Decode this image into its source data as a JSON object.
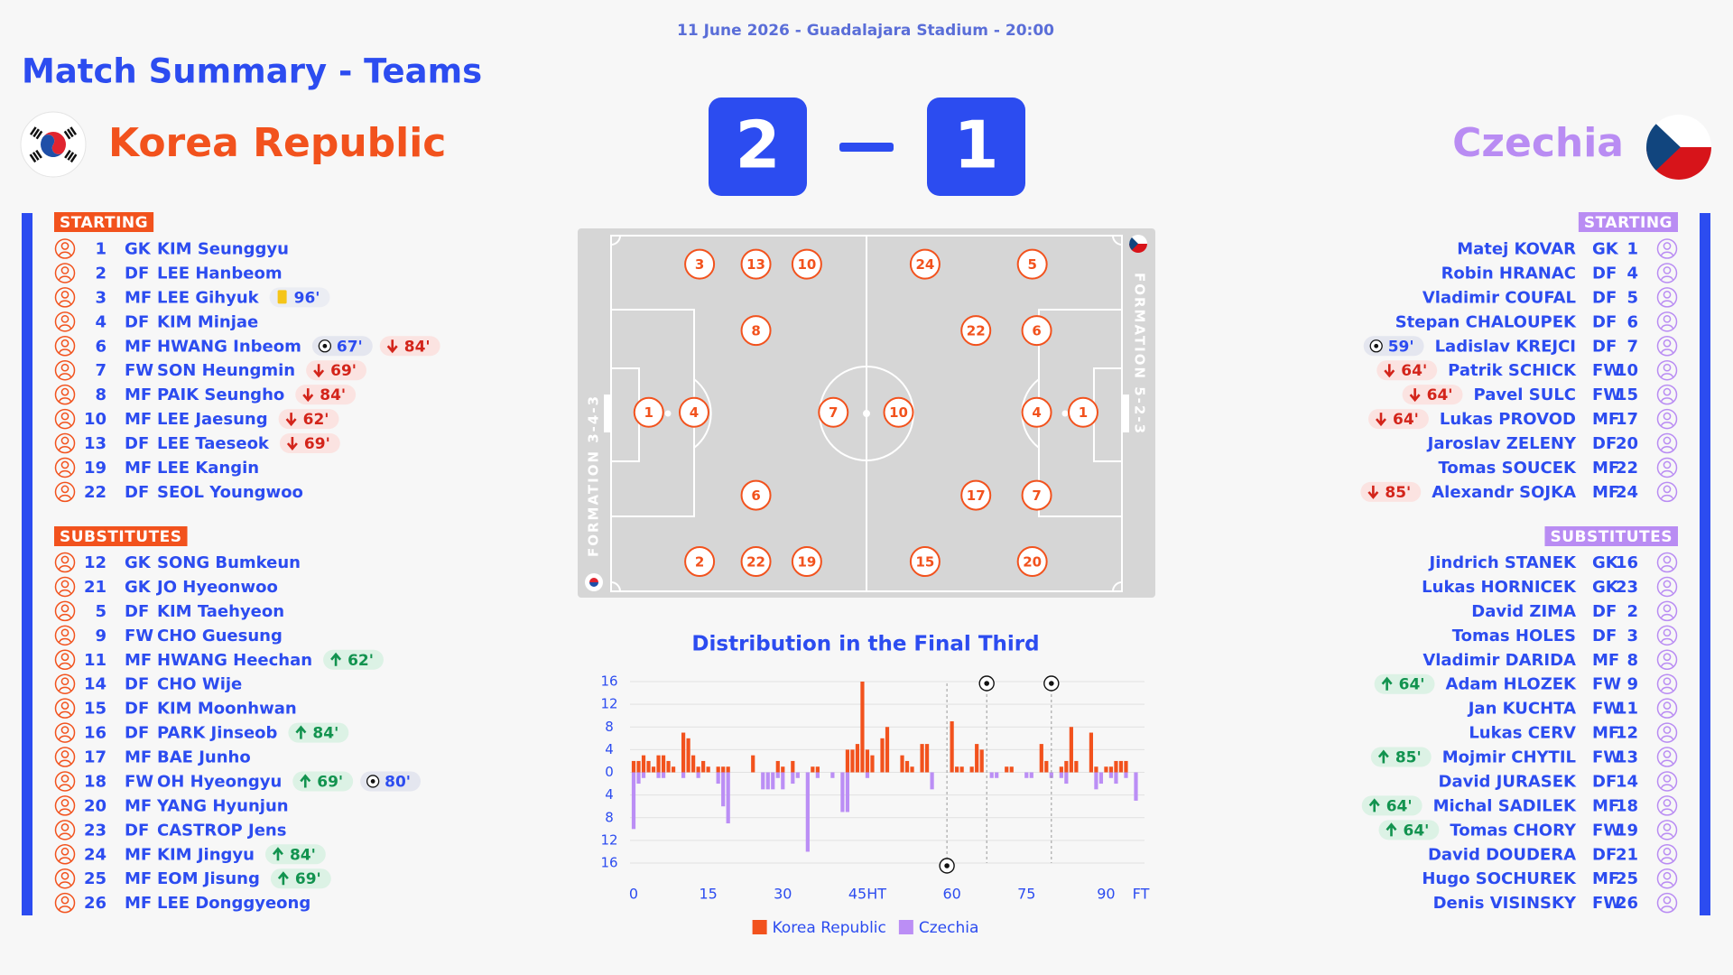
{
  "header": {
    "info": "11 June 2026 - Guadalajara Stadium - 20:00",
    "title": "Match Summary - Teams"
  },
  "score": {
    "home": 2,
    "away": 1
  },
  "teams": {
    "home": {
      "name": "Korea Republic",
      "color": "#f2521d",
      "formation": "FORMATION 3-4-3",
      "starting_label": "STARTING",
      "subs_label": "SUBSTITUTES",
      "starting": [
        {
          "number": 1,
          "position": "GK",
          "name": "KIM Seunggyu"
        },
        {
          "number": 2,
          "position": "DF",
          "name": "LEE Hanbeom"
        },
        {
          "number": 3,
          "position": "MF",
          "name": "LEE Gihyuk",
          "events": [
            {
              "type": "yellow",
              "minute": "96'"
            }
          ]
        },
        {
          "number": 4,
          "position": "DF",
          "name": "KIM Minjae"
        },
        {
          "number": 6,
          "position": "MF",
          "name": "HWANG Inbeom",
          "events": [
            {
              "type": "goal",
              "minute": "67'"
            },
            {
              "type": "off",
              "minute": "84'"
            }
          ]
        },
        {
          "number": 7,
          "position": "FW",
          "name": "SON Heungmin",
          "events": [
            {
              "type": "off",
              "minute": "69'"
            }
          ]
        },
        {
          "number": 8,
          "position": "MF",
          "name": "PAIK Seungho",
          "events": [
            {
              "type": "off",
              "minute": "84'"
            }
          ]
        },
        {
          "number": 10,
          "position": "MF",
          "name": "LEE Jaesung",
          "events": [
            {
              "type": "off",
              "minute": "62'"
            }
          ]
        },
        {
          "number": 13,
          "position": "DF",
          "name": "LEE Taeseok",
          "events": [
            {
              "type": "off",
              "minute": "69'"
            }
          ]
        },
        {
          "number": 19,
          "position": "MF",
          "name": "LEE Kangin"
        },
        {
          "number": 22,
          "position": "DF",
          "name": "SEOL Youngwoo"
        }
      ],
      "substitutes": [
        {
          "number": 12,
          "position": "GK",
          "name": "SONG Bumkeun"
        },
        {
          "number": 21,
          "position": "GK",
          "name": "JO Hyeonwoo"
        },
        {
          "number": 5,
          "position": "DF",
          "name": "KIM Taehyeon"
        },
        {
          "number": 9,
          "position": "FW",
          "name": "CHO Guesung"
        },
        {
          "number": 11,
          "position": "MF",
          "name": "HWANG Heechan",
          "events": [
            {
              "type": "on",
              "minute": "62'"
            }
          ]
        },
        {
          "number": 14,
          "position": "DF",
          "name": "CHO Wije"
        },
        {
          "number": 15,
          "position": "DF",
          "name": "KIM Moonhwan"
        },
        {
          "number": 16,
          "position": "DF",
          "name": "PARK Jinseob",
          "events": [
            {
              "type": "on",
              "minute": "84'"
            }
          ]
        },
        {
          "number": 17,
          "position": "MF",
          "name": "BAE Junho"
        },
        {
          "number": 18,
          "position": "FW",
          "name": "OH Hyeongyu",
          "events": [
            {
              "type": "on",
              "minute": "69'"
            },
            {
              "type": "goal",
              "minute": "80'"
            }
          ]
        },
        {
          "number": 20,
          "position": "MF",
          "name": "YANG Hyunjun"
        },
        {
          "number": 23,
          "position": "DF",
          "name": "CASTROP Jens"
        },
        {
          "number": 24,
          "position": "MF",
          "name": "KIM Jingyu",
          "events": [
            {
              "type": "on",
              "minute": "84'"
            }
          ]
        },
        {
          "number": 25,
          "position": "MF",
          "name": "EOM Jisung",
          "events": [
            {
              "type": "on",
              "minute": "69'"
            }
          ]
        },
        {
          "number": 26,
          "position": "MF",
          "name": "LEE Donggyeong"
        }
      ],
      "pitch": [
        3,
        13,
        10,
        8,
        1,
        4,
        7,
        6,
        2,
        22,
        19
      ]
    },
    "away": {
      "name": "Czechia",
      "color": "#b98cf3",
      "formation": "FORMATION 5-2-3",
      "starting_label": "STARTING",
      "subs_label": "SUBSTITUTES",
      "starting": [
        {
          "number": 1,
          "position": "GK",
          "name": "Matej KOVAR"
        },
        {
          "number": 4,
          "position": "DF",
          "name": "Robin HRANAC"
        },
        {
          "number": 5,
          "position": "DF",
          "name": "Vladimir COUFAL"
        },
        {
          "number": 6,
          "position": "DF",
          "name": "Stepan CHALOUPEK"
        },
        {
          "number": 7,
          "position": "DF",
          "name": "Ladislav KREJCI",
          "events": [
            {
              "type": "goal",
              "minute": "59'"
            }
          ]
        },
        {
          "number": 10,
          "position": "FW",
          "name": "Patrik SCHICK",
          "events": [
            {
              "type": "off",
              "minute": "64'"
            }
          ]
        },
        {
          "number": 15,
          "position": "FW",
          "name": "Pavel SULC",
          "events": [
            {
              "type": "off",
              "minute": "64'"
            }
          ]
        },
        {
          "number": 17,
          "position": "MF",
          "name": "Lukas PROVOD",
          "events": [
            {
              "type": "off",
              "minute": "64'"
            }
          ]
        },
        {
          "number": 20,
          "position": "DF",
          "name": "Jaroslav ZELENY"
        },
        {
          "number": 22,
          "position": "MF",
          "name": "Tomas SOUCEK"
        },
        {
          "number": 24,
          "position": "MF",
          "name": "Alexandr SOJKA",
          "events": [
            {
              "type": "off",
              "minute": "85'"
            }
          ]
        }
      ],
      "substitutes": [
        {
          "number": 16,
          "position": "GK",
          "name": "Jindrich STANEK"
        },
        {
          "number": 23,
          "position": "GK",
          "name": "Lukas HORNICEK"
        },
        {
          "number": 2,
          "position": "DF",
          "name": "David ZIMA"
        },
        {
          "number": 3,
          "position": "DF",
          "name": "Tomas HOLES"
        },
        {
          "number": 8,
          "position": "MF",
          "name": "Vladimir DARIDA"
        },
        {
          "number": 9,
          "position": "FW",
          "name": "Adam HLOZEK",
          "events": [
            {
              "type": "on",
              "minute": "64'"
            }
          ]
        },
        {
          "number": 11,
          "position": "FW",
          "name": "Jan KUCHTA"
        },
        {
          "number": 12,
          "position": "MF",
          "name": "Lukas CERV"
        },
        {
          "number": 13,
          "position": "FW",
          "name": "Mojmir CHYTIL",
          "events": [
            {
              "type": "on",
              "minute": "85'"
            }
          ]
        },
        {
          "number": 14,
          "position": "DF",
          "name": "David JURASEK"
        },
        {
          "number": 18,
          "position": "MF",
          "name": "Michal SADILEK",
          "events": [
            {
              "type": "on",
              "minute": "64'"
            }
          ]
        },
        {
          "number": 19,
          "position": "FW",
          "name": "Tomas CHORY",
          "events": [
            {
              "type": "on",
              "minute": "64'"
            }
          ]
        },
        {
          "number": 21,
          "position": "DF",
          "name": "David DOUDERA"
        },
        {
          "number": 25,
          "position": "MF",
          "name": "Hugo SOCHUREK"
        },
        {
          "number": 26,
          "position": "FW",
          "name": "Denis VISINSKY"
        }
      ],
      "pitch": [
        24,
        5,
        22,
        6,
        10,
        4,
        1,
        17,
        7,
        15,
        20
      ]
    }
  },
  "chart_data": {
    "type": "bar",
    "title": "Distribution in the Final Third",
    "series": [
      {
        "name": "Korea Republic",
        "color": "#f2521d",
        "x": [
          0,
          1,
          2,
          3,
          4,
          5,
          6,
          7,
          8,
          10,
          11,
          12,
          13,
          14,
          15,
          17,
          18,
          19,
          24,
          29,
          30,
          32,
          36,
          37,
          43,
          44,
          45,
          46,
          47,
          48,
          50,
          51,
          54,
          55,
          56,
          58,
          59,
          64,
          65,
          66,
          68,
          69,
          70,
          75,
          76,
          82,
          83,
          86,
          87,
          88,
          89,
          92,
          93,
          95,
          96,
          97,
          98,
          99
        ],
        "values": [
          2,
          2,
          3,
          2,
          1,
          3,
          3,
          2,
          1,
          7,
          6,
          3,
          1,
          2,
          1,
          1,
          1,
          1,
          3,
          2,
          1,
          2,
          1,
          1,
          4,
          4,
          5,
          16,
          4,
          3,
          6,
          8,
          3,
          2,
          1,
          5,
          5,
          9,
          1,
          1,
          1,
          5,
          4,
          1,
          1,
          5,
          2,
          1,
          2,
          8,
          2,
          7,
          1,
          1,
          1,
          2,
          2,
          2
        ]
      },
      {
        "name": "Czechia",
        "color": "#bb8ef5",
        "x": [
          0,
          1,
          2,
          5,
          6,
          10,
          13,
          17,
          18,
          19,
          26,
          27,
          28,
          29,
          30,
          32,
          33,
          35,
          37,
          40,
          42,
          43,
          47,
          60,
          72,
          73,
          79,
          80,
          84,
          86,
          87,
          93,
          94,
          96,
          97,
          99,
          101
        ],
        "values": [
          -10,
          -2,
          -1,
          -1,
          -1,
          -1,
          -1,
          -2,
          -6,
          -9,
          -3,
          -3,
          -3,
          -1,
          -3,
          -2,
          -1,
          -14,
          -1,
          -1,
          -7,
          -7,
          -1,
          -3,
          -1,
          -1,
          -1,
          -1,
          -1,
          -1,
          -2,
          -3,
          -2,
          -1,
          -2,
          -1,
          -5
        ]
      }
    ],
    "xlim": [
      0,
      102
    ],
    "xticks": [
      0,
      15,
      30,
      {
        "value": 47,
        "label": "45HT"
      },
      {
        "value": 64,
        "label": "60"
      },
      {
        "value": 79,
        "label": "75"
      },
      {
        "value": 95,
        "label": "90"
      },
      {
        "value": 102,
        "label": "FT"
      }
    ],
    "ylim": [
      -16,
      16
    ],
    "yticks": [
      16,
      12,
      8,
      4,
      0,
      {
        "value": -4,
        "label": "4"
      },
      {
        "value": -8,
        "label": "8"
      },
      {
        "value": -12,
        "label": "12"
      },
      {
        "value": -16,
        "label": "16"
      }
    ],
    "grid": true,
    "goal_markers": [
      {
        "x": 63,
        "side": "bottom"
      },
      {
        "x": 71,
        "side": "top"
      },
      {
        "x": 84,
        "side": "top"
      }
    ],
    "legend": "bottom"
  }
}
